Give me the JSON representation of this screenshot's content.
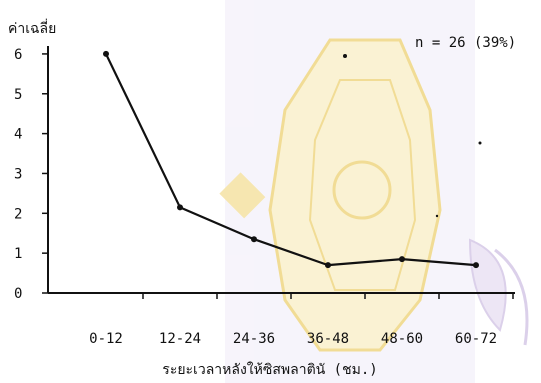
{
  "colors": {
    "ink": "#111111",
    "watermark_gold": "#f0d98a",
    "watermark_purple": "#d8cce8"
  },
  "chart_data": {
    "type": "line",
    "ylabel": "ค่าเฉลี่ย",
    "xlabel": "ระยะเวลาหลังให้ซิสพลาตินั (ชม.)",
    "annotation": "n = 26 (39%)",
    "categories": [
      "0-12",
      "12-24",
      "24-36",
      "36-48",
      "48-60",
      "60-72"
    ],
    "y_ticks": [
      "0",
      "1",
      "2",
      "3",
      "4",
      "5",
      "6"
    ],
    "ylim": [
      0,
      6.5
    ],
    "series": [
      {
        "values": [
          6.0,
          2.15,
          1.35,
          0.7,
          0.85,
          0.7
        ]
      }
    ],
    "grid": false,
    "markers": true
  }
}
